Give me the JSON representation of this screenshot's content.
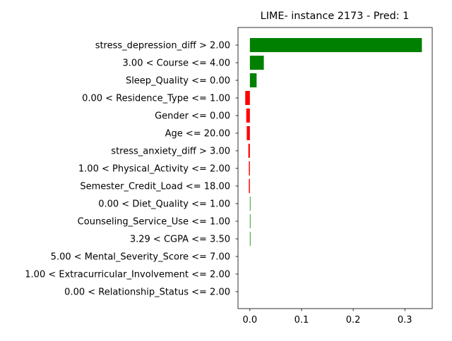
{
  "chart_data": {
    "type": "bar",
    "orientation": "horizontal",
    "title": "LIME- instance 2173 - Pred: 1",
    "xlabel": "",
    "ylabel": "",
    "xlim": [
      -0.023,
      0.353
    ],
    "xticks": [
      0.0,
      0.1,
      0.2,
      0.3
    ],
    "xtick_labels": [
      "0.0",
      "0.1",
      "0.2",
      "0.3"
    ],
    "grid": false,
    "categories": [
      "stress_depression_diff > 2.00",
      "3.00 < Course <= 4.00",
      "Sleep_Quality <= 0.00",
      "0.00 < Residence_Type <= 1.00",
      "Gender <= 0.00",
      "Age <= 20.00",
      "stress_anxiety_diff > 3.00",
      "1.00 < Physical_Activity <= 2.00",
      "Semester_Credit_Load <= 18.00",
      "0.00 < Diet_Quality <= 1.00",
      "Counseling_Service_Use <= 1.00",
      "3.29 < CGPA <= 3.50",
      "5.00 < Mental_Severity_Score <= 7.00",
      "1.00 < Extracurricular_Involvement <= 2.00",
      "0.00 < Relationship_Status <= 2.00"
    ],
    "values": [
      0.333,
      0.027,
      0.013,
      -0.009,
      -0.007,
      -0.006,
      -0.003,
      -0.002,
      -0.002,
      0.001,
      0.001,
      0.001,
      0.0,
      0.0,
      0.0
    ],
    "colors": {
      "positive": "#008000",
      "negative": "#ff0000",
      "axis": "#000000"
    }
  }
}
